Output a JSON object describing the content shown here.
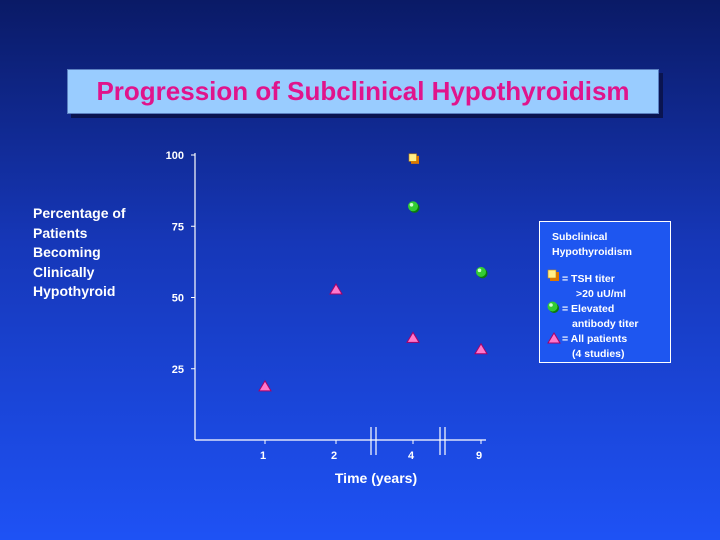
{
  "slide": {
    "title": "Progression of Subclinical Hypothyroidism",
    "ylabel_lines": [
      "Percentage of",
      "Patients",
      "Becoming",
      "Clinically",
      "Hypothyroid"
    ],
    "xlabel": "Time (years)"
  },
  "legend": {
    "heading_lines": [
      "Subclinical",
      "Hypothyroidism"
    ],
    "items": [
      {
        "lines": [
          "= TSH titer",
          ">20 uU/ml"
        ],
        "marker": "square"
      },
      {
        "lines": [
          "= Elevated",
          "antibody  titer"
        ],
        "marker": "circle"
      },
      {
        "lines": [
          "= All patients",
          "(4 studies)"
        ],
        "marker": "triangle"
      }
    ]
  },
  "colors": {
    "title": "#e0148c",
    "title_box": "#99ccff",
    "square_fill": "#ffee88",
    "square_shadow": "#dd7700",
    "circle_fill": "#33cc33",
    "triangle_fill": "#ff77cc"
  },
  "chart_data": {
    "type": "scatter",
    "xlabel": "Time (years)",
    "ylabel": "Percentage of Patients Becoming Clinically Hypothyroid",
    "categories": [
      "1",
      "2",
      "4",
      "9"
    ],
    "axis_breaks_between": [
      [
        "2",
        "4"
      ],
      [
        "4",
        "9"
      ]
    ],
    "yticks": [
      25,
      50,
      75,
      100
    ],
    "ylim": [
      0,
      100
    ],
    "series": [
      {
        "name": "TSH titer >20 uU/ml",
        "marker": "square",
        "points": [
          {
            "x": "4",
            "y": 99
          }
        ]
      },
      {
        "name": "Elevated antibody titer",
        "marker": "circle",
        "points": [
          {
            "x": "4",
            "y": 82
          },
          {
            "x": "9",
            "y": 59
          }
        ]
      },
      {
        "name": "All patients (4 studies)",
        "marker": "triangle",
        "points": [
          {
            "x": "1",
            "y": 19
          },
          {
            "x": "2",
            "y": 53
          },
          {
            "x": "4",
            "y": 36
          },
          {
            "x": "9",
            "y": 32
          }
        ]
      }
    ],
    "grid": false,
    "legend_position": "right"
  }
}
